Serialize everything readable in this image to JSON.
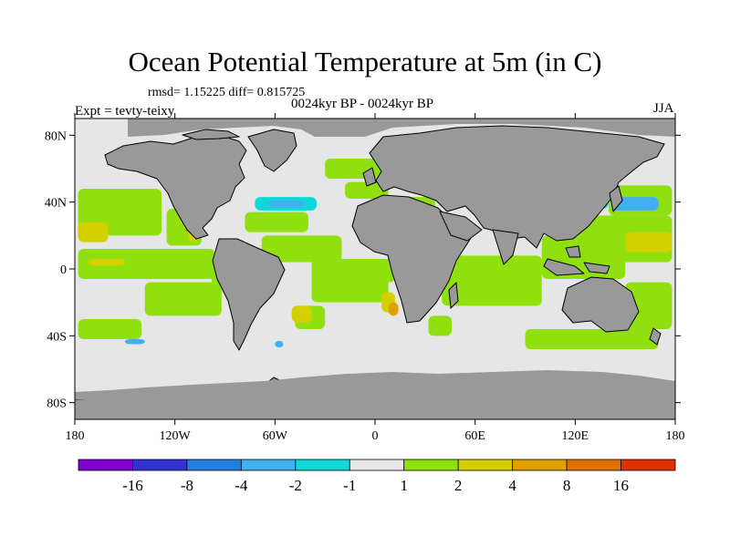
{
  "title": "Ocean Potential Temperature at 5m (in C)",
  "stats": "rmsd= 1.15225 diff= 0.815725",
  "subtitle": "0024kyr BP - 0024kyr BP",
  "left_label": "Expt = tevty-teixy",
  "right_label": "JJA",
  "colors": {
    "land": "#999999",
    "no_change": "#e6e6e6",
    "coastline": "#000000"
  },
  "chart_data": {
    "type": "heatmap",
    "projection": "cylindrical-equidistant",
    "x_range": [
      -180,
      180
    ],
    "y_range": [
      -90,
      90
    ],
    "x_ticks": [
      {
        "value": -180,
        "label": "180"
      },
      {
        "value": -120,
        "label": "120W"
      },
      {
        "value": -60,
        "label": "60W"
      },
      {
        "value": 0,
        "label": "0"
      },
      {
        "value": 60,
        "label": "60E"
      },
      {
        "value": 120,
        "label": "120E"
      },
      {
        "value": 180,
        "label": "180"
      }
    ],
    "y_ticks": [
      {
        "value": 80,
        "label": "80N"
      },
      {
        "value": 40,
        "label": "40N"
      },
      {
        "value": 0,
        "label": "0"
      },
      {
        "value": -40,
        "label": "40S"
      },
      {
        "value": -80,
        "label": "80S"
      }
    ],
    "colorbar": {
      "colors": [
        "#8000d0",
        "#3232d0",
        "#2080e0",
        "#40b0f0",
        "#10d8d8",
        "#e6e6e6",
        "#90e010",
        "#d4d000",
        "#e0a000",
        "#e07000",
        "#e03000"
      ],
      "labels": [
        "-16",
        "-8",
        "-4",
        "-2",
        "-1",
        "1",
        "2",
        "4",
        "8",
        "16"
      ]
    },
    "regions": [
      {
        "level": 1,
        "lon": [
          -178,
          -128
        ],
        "lat": [
          20,
          48
        ]
      },
      {
        "level": 1,
        "lon": [
          -125,
          -104
        ],
        "lat": [
          14,
          36
        ]
      },
      {
        "level": 1,
        "lon": [
          -178,
          -96
        ],
        "lat": [
          -6,
          12
        ]
      },
      {
        "level": 1,
        "lon": [
          -138,
          -92
        ],
        "lat": [
          -28,
          -8
        ]
      },
      {
        "level": 1,
        "lon": [
          -98,
          -74
        ],
        "lat": [
          -10,
          8
        ]
      },
      {
        "level": 2,
        "lon": [
          -178,
          -160
        ],
        "lat": [
          16,
          28
        ]
      },
      {
        "level": 2,
        "lon": [
          -172,
          -150
        ],
        "lat": [
          2,
          6
        ]
      },
      {
        "level": 2,
        "lon": [
          -112,
          -106
        ],
        "lat": [
          16,
          26
        ]
      },
      {
        "level": 3,
        "lon": [
          -114,
          -108
        ],
        "lat": [
          22,
          27
        ]
      },
      {
        "level": -1,
        "lon": [
          -116,
          -110
        ],
        "lat": [
          27,
          31
        ]
      },
      {
        "level": 1,
        "lon": [
          -78,
          -40
        ],
        "lat": [
          22,
          34
        ]
      },
      {
        "level": 1,
        "lon": [
          -68,
          -20
        ],
        "lat": [
          4,
          20
        ]
      },
      {
        "level": 1,
        "lon": [
          -38,
          8
        ],
        "lat": [
          -20,
          6
        ]
      },
      {
        "level": 1,
        "lon": [
          -48,
          -30
        ],
        "lat": [
          -36,
          -22
        ]
      },
      {
        "level": -1,
        "lon": [
          -72,
          -35
        ],
        "lat": [
          35,
          43
        ]
      },
      {
        "level": -2,
        "lon": [
          -64,
          -42
        ],
        "lat": [
          37,
          41
        ]
      },
      {
        "level": 2,
        "lon": [
          -50,
          -38
        ],
        "lat": [
          -32,
          -22
        ]
      },
      {
        "level": 1,
        "lon": [
          -30,
          8
        ],
        "lat": [
          54,
          66
        ]
      },
      {
        "level": 1,
        "lon": [
          -18,
          8
        ],
        "lat": [
          42,
          52
        ]
      },
      {
        "level": 1,
        "lon": [
          2,
          36
        ],
        "lat": [
          31,
          43
        ]
      },
      {
        "level": 1,
        "lon": [
          -8,
          12
        ],
        "lat": [
          -8,
          6
        ]
      },
      {
        "level": 2,
        "lon": [
          4,
          12
        ],
        "lat": [
          -26,
          -14
        ]
      },
      {
        "level": 1,
        "lon": [
          40,
          100
        ],
        "lat": [
          -22,
          8
        ]
      },
      {
        "level": 1,
        "lon": [
          32,
          46
        ],
        "lat": [
          -40,
          -28
        ]
      },
      {
        "level": 1,
        "lon": [
          100,
          150
        ],
        "lat": [
          -6,
          20
        ]
      },
      {
        "level": 1,
        "lon": [
          122,
          178
        ],
        "lat": [
          4,
          32
        ]
      },
      {
        "level": 1,
        "lon": [
          140,
          178
        ],
        "lat": [
          32,
          50
        ]
      },
      {
        "level": -2,
        "lon": [
          142,
          170
        ],
        "lat": [
          35,
          43
        ]
      },
      {
        "level": -1,
        "lon": [
          124,
          140
        ],
        "lat": [
          36,
          42
        ]
      },
      {
        "level": 1,
        "lon": [
          90,
          170
        ],
        "lat": [
          -48,
          -36
        ]
      },
      {
        "level": 1,
        "lon": [
          150,
          178
        ],
        "lat": [
          -36,
          -8
        ]
      },
      {
        "level": 1,
        "lon": [
          -178,
          -140
        ],
        "lat": [
          -42,
          -30
        ]
      },
      {
        "level": 2,
        "lon": [
          150,
          178
        ],
        "lat": [
          10,
          22
        ]
      },
      {
        "level": -2,
        "lon": [
          -150,
          -138
        ],
        "lat": [
          -45,
          -42
        ]
      },
      {
        "level": -2,
        "lon": [
          -60,
          -55
        ],
        "lat": [
          -47,
          -43
        ]
      },
      {
        "level": 3,
        "lon": [
          8,
          14
        ],
        "lat": [
          -28,
          -20
        ]
      }
    ]
  }
}
